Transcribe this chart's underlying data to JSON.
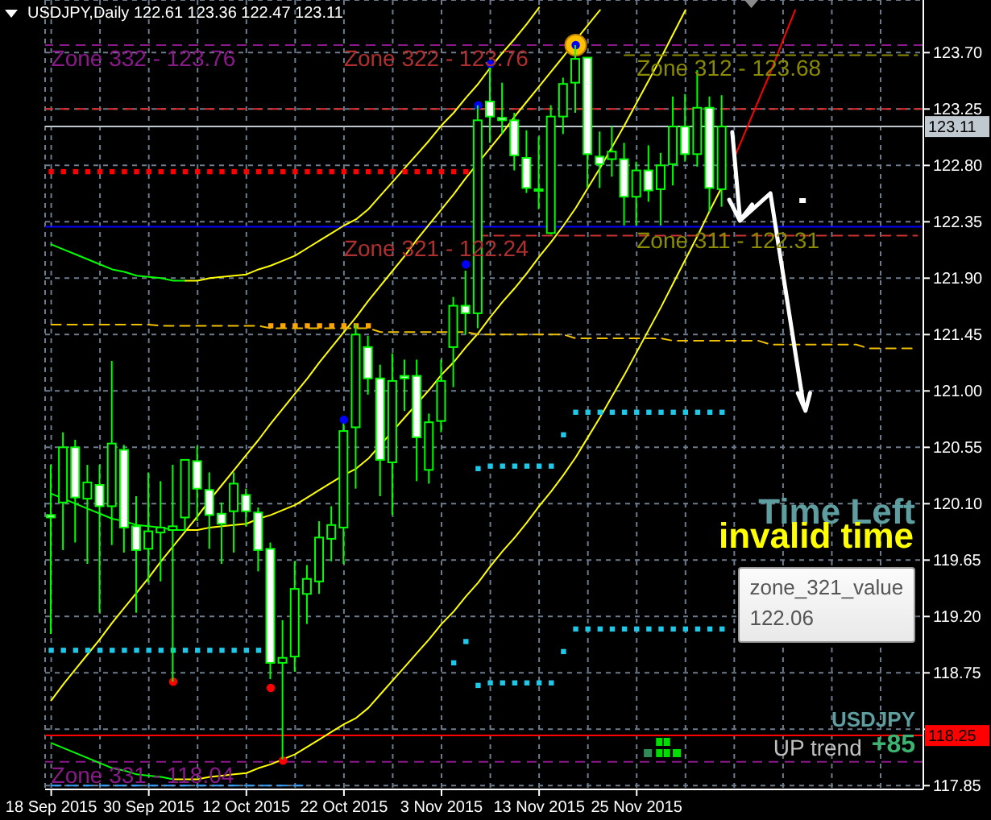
{
  "chart_data": {
    "type": "candlestick",
    "title": "USDJPY,Daily 122.61 123.36 122.47 123.11",
    "color": "#00ff00",
    "categories": [
      "18 Sep 2015",
      null,
      null,
      null,
      null,
      null,
      null,
      null,
      "30 Sep 2015",
      null,
      null,
      null,
      null,
      null,
      null,
      null,
      "12 Oct 2015",
      null,
      null,
      null,
      null,
      null,
      null,
      null,
      "22 Oct 2015",
      null,
      null,
      null,
      null,
      null,
      null,
      null,
      "3 Nov 2015",
      null,
      null,
      null,
      null,
      null,
      null,
      null,
      "13 Nov 2015",
      null,
      null,
      null,
      null,
      null,
      null,
      null,
      "25 Nov 2015",
      null,
      null,
      null,
      null,
      null,
      null,
      null,
      null,
      null,
      null,
      null,
      null,
      null,
      null,
      null,
      null,
      null,
      null,
      null,
      null,
      null,
      null,
      null
    ],
    "ohlc": [
      [
        120.01,
        120.41,
        119.06,
        119.99
      ],
      [
        120.11,
        120.67,
        119.73,
        120.55
      ],
      [
        120.55,
        120.61,
        119.79,
        120.15
      ],
      [
        120.14,
        120.41,
        119.62,
        120.27
      ],
      [
        120.25,
        120.41,
        119.23,
        120.08
      ],
      [
        120.08,
        121.24,
        119.77,
        120.58
      ],
      [
        120.53,
        120.57,
        119.71,
        119.91
      ],
      [
        119.92,
        120.16,
        119.23,
        119.73
      ],
      [
        119.74,
        120.35,
        119.47,
        119.88
      ],
      [
        119.87,
        120.28,
        119.48,
        119.91
      ],
      [
        119.89,
        120.41,
        118.68,
        119.92
      ],
      [
        119.99,
        120.45,
        119.88,
        120.45
      ],
      [
        120.44,
        120.56,
        119.96,
        120.22
      ],
      [
        120.21,
        120.35,
        119.74,
        120.01
      ],
      [
        120.02,
        120.11,
        119.62,
        119.94
      ],
      [
        120.04,
        120.35,
        119.71,
        120.26
      ],
      [
        120.17,
        120.22,
        119.92,
        120.04
      ],
      [
        120.03,
        120.07,
        119.56,
        119.73
      ],
      [
        119.74,
        119.79,
        118.7,
        118.83
      ],
      [
        118.83,
        119.17,
        118.06,
        118.87
      ],
      [
        118.88,
        119.64,
        118.76,
        119.42
      ],
      [
        119.38,
        119.61,
        119.14,
        119.5
      ],
      [
        119.48,
        119.96,
        119.38,
        119.83
      ],
      [
        119.82,
        120.08,
        119.64,
        119.93
      ],
      [
        119.91,
        120.74,
        119.62,
        120.68
      ],
      [
        120.71,
        121.53,
        120.22,
        121.45
      ],
      [
        121.35,
        121.44,
        120.97,
        121.1
      ],
      [
        121.1,
        121.21,
        120.16,
        120.45
      ],
      [
        120.43,
        121.3,
        120.01,
        121.08
      ],
      [
        121.12,
        121.25,
        120.84,
        121.1
      ],
      [
        121.12,
        121.25,
        120.28,
        120.63
      ],
      [
        120.37,
        120.82,
        120.26,
        120.75
      ],
      [
        120.76,
        121.25,
        120.67,
        121.08
      ],
      [
        121.35,
        121.75,
        121.03,
        121.68
      ],
      [
        121.68,
        121.96,
        121.45,
        121.62
      ],
      [
        121.62,
        123.28,
        121.5,
        123.16
      ],
      [
        123.31,
        123.58,
        122.98,
        123.19
      ],
      [
        123.18,
        123.46,
        123.05,
        123.16
      ],
      [
        123.16,
        123.22,
        122.76,
        122.88
      ],
      [
        122.86,
        123.08,
        122.58,
        122.62
      ],
      [
        122.61,
        123.03,
        122.45,
        122.6
      ],
      [
        122.26,
        123.28,
        122.25,
        123.19
      ],
      [
        123.19,
        123.5,
        123.05,
        123.45
      ],
      [
        123.46,
        123.76,
        123.22,
        123.65
      ],
      [
        123.66,
        123.66,
        122.62,
        122.89
      ],
      [
        122.87,
        123.07,
        122.62,
        122.81
      ],
      [
        122.85,
        123.11,
        122.71,
        122.91
      ],
      [
        122.85,
        122.98,
        122.32,
        122.55
      ],
      [
        122.55,
        122.83,
        122.32,
        122.76
      ],
      [
        122.76,
        122.96,
        122.51,
        122.6
      ],
      [
        122.61,
        122.9,
        122.32,
        122.8
      ],
      [
        122.81,
        123.35,
        122.64,
        123.11
      ],
      [
        123.11,
        123.37,
        122.83,
        122.89
      ],
      [
        122.89,
        123.56,
        122.79,
        123.26
      ],
      [
        123.26,
        123.35,
        122.43,
        122.62
      ],
      [
        122.61,
        123.36,
        122.47,
        123.11
      ],
      null,
      null,
      null,
      null,
      null,
      null,
      null,
      null,
      null,
      null,
      null,
      null,
      null,
      null,
      null,
      null
    ],
    "series": [
      {
        "type": "line",
        "color": "#00ff00",
        "marker": "none",
        "values": [
          122.17,
          122.13,
          122.09,
          122.05,
          122.01,
          121.97,
          121.95,
          121.92,
          121.91,
          121.9,
          121.88,
          121.88,
          null,
          null,
          null,
          null,
          null,
          null,
          null,
          null,
          null,
          null,
          null,
          null,
          null,
          null,
          null,
          null,
          null,
          null,
          null,
          null,
          null,
          null,
          null,
          null,
          null,
          null,
          null,
          null,
          null,
          null,
          null,
          null,
          null,
          null,
          null,
          null,
          null,
          null,
          null,
          null,
          null,
          null,
          null,
          null,
          null,
          null,
          null,
          null,
          null,
          null,
          null,
          null,
          null,
          null,
          null,
          null,
          null,
          null,
          null,
          null
        ]
      },
      {
        "type": "line",
        "color": "#ffff00",
        "marker": "none",
        "values": [
          null,
          null,
          null,
          null,
          null,
          null,
          null,
          null,
          null,
          null,
          null,
          121.88,
          121.88,
          121.9,
          121.91,
          121.92,
          121.93,
          121.97,
          122.0,
          122.04,
          122.08,
          122.14,
          122.2,
          122.26,
          122.32,
          122.37,
          122.45,
          122.56,
          122.67,
          122.78,
          122.89,
          123.0,
          123.12,
          123.22,
          123.34,
          123.45,
          123.58,
          123.7,
          123.81,
          123.93,
          124.06,
          null,
          null,
          null,
          null,
          null,
          null,
          null,
          null,
          null,
          null,
          null,
          null,
          null,
          null,
          null,
          null,
          null,
          null,
          null,
          null,
          null,
          null,
          null,
          null,
          null,
          null,
          null,
          null,
          null,
          null,
          null
        ]
      },
      {
        "type": "line",
        "color": "#00ff00",
        "marker": "none",
        "values": [
          120.18,
          120.14,
          120.1,
          120.06,
          120.02,
          119.98,
          119.96,
          119.93,
          119.92,
          119.91,
          119.89,
          119.89,
          null,
          null,
          null,
          null,
          null,
          null,
          null,
          null,
          null,
          null,
          null,
          null,
          null,
          null,
          null,
          null,
          null,
          null,
          null,
          null,
          null,
          null,
          null,
          null,
          null,
          null,
          null,
          null,
          null,
          null,
          null,
          null,
          null,
          null,
          null,
          null,
          null,
          null,
          null,
          null,
          null,
          null,
          null,
          null,
          null,
          null,
          null,
          null,
          null,
          null,
          null,
          null,
          null,
          null,
          null,
          null,
          null,
          null,
          null,
          null
        ]
      },
      {
        "type": "line",
        "color": "#ffff00",
        "marker": "none",
        "values": [
          null,
          null,
          null,
          null,
          null,
          null,
          null,
          null,
          null,
          null,
          null,
          119.89,
          119.89,
          119.91,
          119.92,
          119.93,
          119.94,
          119.98,
          120.01,
          120.05,
          120.09,
          120.15,
          120.21,
          120.27,
          120.33,
          120.38,
          120.46,
          120.57,
          120.68,
          120.79,
          120.9,
          121.01,
          121.13,
          121.23,
          121.35,
          121.46,
          121.59,
          121.71,
          121.82,
          121.94,
          122.07,
          122.19,
          122.32,
          122.46,
          122.62,
          122.78,
          122.95,
          123.12,
          123.3,
          123.48,
          123.66,
          123.85,
          124.04,
          null,
          null,
          null,
          null,
          null,
          null,
          null,
          null,
          null,
          null,
          null,
          null,
          null,
          null,
          null,
          null,
          null,
          null,
          null
        ]
      },
      {
        "type": "line",
        "color": "#00ff00",
        "marker": "none",
        "values": [
          118.19,
          118.15,
          118.11,
          118.07,
          118.03,
          117.99,
          117.97,
          117.94,
          117.93,
          117.92,
          117.9,
          null,
          null,
          null,
          null,
          null,
          null,
          null,
          null,
          null,
          null,
          null,
          null,
          null,
          null,
          null,
          null,
          null,
          null,
          null,
          null,
          null,
          null,
          null,
          null,
          null,
          null,
          null,
          null,
          null,
          null,
          null,
          null,
          null,
          null,
          null,
          null,
          null,
          null,
          null,
          null,
          null,
          null,
          null,
          null,
          null,
          null,
          null,
          null,
          null,
          null,
          null,
          null,
          null,
          null,
          null,
          null,
          null,
          null,
          null,
          null,
          null
        ]
      },
      {
        "type": "line",
        "color": "#ffff00",
        "marker": "none",
        "values": [
          null,
          null,
          null,
          null,
          null,
          null,
          null,
          null,
          null,
          null,
          117.9,
          117.9,
          117.9,
          117.92,
          117.93,
          117.94,
          117.95,
          117.99,
          118.02,
          118.06,
          118.1,
          118.16,
          118.22,
          118.28,
          118.34,
          118.39,
          118.47,
          118.58,
          118.69,
          118.8,
          118.91,
          119.02,
          119.14,
          119.24,
          119.36,
          119.47,
          119.6,
          119.72,
          119.83,
          119.95,
          120.08,
          120.2,
          120.33,
          120.47,
          120.63,
          120.79,
          120.96,
          121.13,
          121.31,
          121.49,
          121.67,
          121.86,
          122.05,
          122.24,
          122.44,
          122.63,
          null,
          null,
          null,
          null,
          null,
          null,
          null,
          null,
          null,
          null,
          null,
          null,
          null,
          null,
          null,
          null
        ]
      },
      {
        "type": "line",
        "color": "#ff0000",
        "marker": "none",
        "values": [
          null,
          null,
          null,
          null,
          null,
          null,
          null,
          null,
          null,
          null,
          null,
          null,
          null,
          null,
          null,
          null,
          null,
          null,
          null,
          null,
          null,
          null,
          null,
          null,
          null,
          null,
          null,
          null,
          null,
          null,
          null,
          null,
          null,
          null,
          null,
          null,
          null,
          null,
          null,
          null,
          null,
          null,
          null,
          null,
          null,
          null,
          null,
          null,
          null,
          null,
          null,
          null,
          null,
          null,
          null,
          null,
          122.86,
          123.09,
          123.32,
          123.55,
          123.8,
          124.04,
          null,
          null,
          null,
          null,
          null,
          null,
          null,
          null,
          null,
          null
        ]
      },
      {
        "type": "line",
        "color": "#ffff00",
        "marker": "none",
        "values": [
          118.53,
          118.66,
          118.78,
          118.9,
          119.02,
          119.15,
          119.27,
          119.39,
          119.51,
          119.64,
          119.76,
          119.88,
          120.0,
          120.13,
          120.25,
          120.37,
          120.49,
          120.61,
          120.74,
          120.86,
          120.98,
          121.1,
          121.23,
          121.35,
          121.47,
          121.59,
          121.72,
          121.84,
          121.96,
          122.08,
          122.21,
          122.33,
          122.45,
          122.57,
          122.7,
          122.82,
          122.94,
          123.06,
          123.19,
          123.31,
          123.43,
          123.55,
          123.67,
          123.8,
          123.92,
          124.04,
          null,
          null,
          null,
          null,
          null,
          null,
          null,
          null,
          null,
          null,
          null,
          null,
          null,
          null,
          null,
          null,
          null,
          null,
          null,
          null,
          null,
          null,
          null,
          null,
          null,
          null
        ]
      },
      {
        "type": "line",
        "color": "#f0c000",
        "marker": "none",
        "line_style": "dashed",
        "values": [
          121.53,
          121.53,
          121.53,
          121.53,
          121.53,
          121.53,
          121.53,
          121.53,
          121.53,
          121.52,
          121.52,
          121.52,
          121.52,
          121.52,
          121.52,
          121.52,
          121.52,
          121.52,
          121.5,
          121.5,
          121.5,
          121.5,
          121.5,
          121.5,
          121.5,
          121.5,
          121.5,
          121.47,
          121.47,
          121.47,
          121.47,
          121.47,
          121.47,
          121.47,
          121.47,
          121.45,
          121.45,
          121.45,
          121.45,
          121.45,
          121.45,
          121.45,
          121.45,
          121.42,
          121.42,
          121.42,
          121.42,
          121.42,
          121.42,
          121.42,
          121.42,
          121.4,
          121.4,
          121.4,
          121.4,
          121.4,
          121.4,
          121.4,
          121.4,
          121.37,
          121.37,
          121.37,
          121.37,
          121.37,
          121.37,
          121.37,
          121.37,
          121.34,
          121.34,
          121.34,
          121.34,
          121.34
        ]
      },
      {
        "type": "line",
        "color": "#c83232",
        "marker": "none",
        "line_style": "dashed",
        "values": [
          null,
          null,
          null,
          null,
          null,
          null,
          null,
          null,
          null,
          null,
          null,
          null,
          null,
          null,
          null,
          null,
          null,
          null,
          null,
          null,
          null,
          null,
          null,
          null,
          null,
          null,
          null,
          null,
          null,
          null,
          null,
          null,
          null,
          null,
          null,
          122.24,
          122.24,
          122.24,
          122.24,
          122.24,
          122.24,
          122.24,
          122.24,
          122.24,
          122.24,
          122.24,
          122.24,
          122.24,
          122.24,
          122.24,
          122.24,
          122.24,
          122.24,
          122.24,
          122.24,
          122.24,
          122.24,
          122.24,
          122.24,
          122.24,
          122.24,
          122.24,
          122.24,
          122.24,
          122.24,
          122.24,
          122.24,
          122.24,
          122.24,
          122.24,
          122.24,
          122.24
        ]
      },
      {
        "type": "line",
        "color": "#8b8b00",
        "marker": "none",
        "line_style": "dashed",
        "values": [
          null,
          null,
          null,
          null,
          null,
          null,
          null,
          null,
          null,
          null,
          null,
          null,
          null,
          null,
          null,
          null,
          null,
          null,
          null,
          null,
          null,
          null,
          null,
          null,
          null,
          null,
          null,
          null,
          null,
          null,
          null,
          null,
          null,
          null,
          null,
          null,
          null,
          null,
          null,
          null,
          null,
          null,
          null,
          null,
          null,
          null,
          null,
          123.68,
          123.68,
          123.68,
          123.68,
          123.68,
          123.68,
          123.68,
          123.68,
          123.68,
          123.68,
          123.68,
          123.68,
          123.68,
          123.68,
          123.68,
          123.68,
          123.68,
          123.68,
          123.68,
          123.68,
          123.68,
          123.68,
          123.68,
          123.68,
          123.68
        ]
      },
      {
        "type": "scatter",
        "color": "#ff0000",
        "marker": "square",
        "values": [
          122.75,
          122.75,
          122.75,
          122.75,
          122.75,
          122.75,
          122.75,
          122.75,
          122.75,
          122.75,
          122.75,
          122.75,
          122.75,
          122.75,
          122.75,
          122.75,
          122.75,
          122.75,
          122.75,
          122.75,
          122.75,
          122.75,
          122.75,
          122.75,
          122.75,
          122.75,
          122.75,
          122.75,
          122.75,
          122.75,
          122.75,
          122.75,
          122.75,
          122.75,
          122.75,
          null,
          null,
          null,
          null,
          null,
          null,
          null,
          null,
          null,
          null,
          null,
          null,
          null,
          null,
          null,
          null,
          null,
          null,
          null,
          null,
          null,
          null,
          null,
          null,
          null,
          null,
          null,
          null,
          null,
          null,
          null,
          null,
          null,
          null,
          null,
          null,
          null
        ]
      },
      {
        "type": "scatter",
        "color": "#ffa500",
        "marker": "square",
        "values": [
          null,
          null,
          null,
          null,
          null,
          null,
          null,
          null,
          null,
          null,
          null,
          null,
          null,
          null,
          null,
          null,
          null,
          null,
          121.52,
          121.52,
          121.52,
          121.52,
          121.52,
          121.52,
          121.52,
          121.52,
          121.52,
          null,
          null,
          null,
          null,
          null,
          null,
          null,
          null,
          null,
          null,
          null,
          null,
          null,
          null,
          null,
          null,
          null,
          null,
          null,
          null,
          null,
          null,
          null,
          null,
          null,
          null,
          null,
          null,
          null,
          null,
          null,
          null,
          null,
          null,
          null,
          null,
          null,
          null,
          null,
          null,
          null,
          null,
          null,
          null,
          null
        ]
      },
      {
        "type": "scatter",
        "color": "#1ec8e8",
        "marker": "square",
        "values": [
          118.93,
          118.93,
          118.93,
          118.93,
          118.93,
          118.93,
          118.93,
          118.93,
          118.93,
          118.93,
          118.93,
          118.93,
          118.93,
          118.93,
          118.93,
          118.93,
          118.93,
          118.93,
          null,
          null,
          null,
          null,
          null,
          null,
          null,
          null,
          null,
          null,
          null,
          null,
          null,
          null,
          null,
          118.83,
          119.0,
          118.65,
          118.67,
          118.67,
          118.67,
          118.67,
          118.67,
          118.67,
          118.92,
          119.1,
          119.1,
          119.1,
          119.1,
          119.1,
          119.1,
          119.1,
          119.1,
          119.1,
          119.1,
          119.1,
          119.1,
          119.1,
          null,
          null,
          null,
          null,
          null,
          null,
          null,
          null,
          null,
          null,
          null,
          null,
          null,
          null,
          null,
          null
        ]
      },
      {
        "type": "scatter",
        "color": "#1ec8e8",
        "marker": "square",
        "values": [
          null,
          null,
          null,
          null,
          null,
          null,
          null,
          null,
          null,
          null,
          null,
          null,
          null,
          null,
          null,
          null,
          null,
          null,
          null,
          null,
          null,
          null,
          null,
          null,
          null,
          null,
          null,
          null,
          null,
          null,
          null,
          null,
          null,
          null,
          null,
          120.38,
          120.4,
          120.4,
          120.4,
          120.4,
          120.4,
          120.4,
          120.65,
          120.83,
          120.83,
          120.83,
          120.83,
          120.83,
          120.83,
          120.83,
          120.83,
          120.83,
          120.83,
          120.83,
          120.83,
          120.83,
          null,
          null,
          null,
          null,
          null,
          null,
          null,
          null,
          null,
          null,
          null,
          null,
          null,
          null,
          null,
          null
        ]
      },
      {
        "type": "bubble",
        "color": "#ffc000",
        "values": [
          null,
          null,
          null,
          null,
          null,
          null,
          null,
          null,
          null,
          null,
          null,
          null,
          null,
          null,
          null,
          null,
          null,
          null,
          null,
          null,
          null,
          null,
          null,
          null,
          null,
          null,
          null,
          null,
          null,
          null,
          null,
          null,
          null,
          null,
          null,
          null,
          null,
          null,
          null,
          null,
          null,
          null,
          null,
          123.76,
          null,
          null,
          null,
          null,
          null,
          null,
          null,
          null,
          null,
          null,
          null,
          null,
          null,
          null,
          null,
          null,
          null,
          null,
          null,
          null,
          null,
          null,
          null,
          null,
          null,
          null,
          null,
          null
        ],
        "sizes": [
          null,
          null,
          null,
          null,
          null,
          null,
          null,
          null,
          null,
          null,
          null,
          null,
          null,
          null,
          null,
          null,
          null,
          null,
          null,
          null,
          null,
          null,
          null,
          null,
          null,
          null,
          null,
          null,
          null,
          null,
          null,
          null,
          null,
          null,
          null,
          null,
          null,
          null,
          null,
          null,
          null,
          null,
          null,
          1,
          null,
          null,
          null,
          null,
          null,
          null,
          null,
          null,
          null,
          null,
          null,
          null,
          null,
          null,
          null,
          null,
          null,
          null,
          null,
          null,
          null,
          null,
          null,
          null,
          null,
          null,
          null,
          null
        ]
      },
      {
        "type": "scatter",
        "color": "#0000ff",
        "marker": "circle",
        "values": [
          null,
          null,
          null,
          null,
          null,
          null,
          null,
          null,
          null,
          null,
          null,
          null,
          null,
          null,
          null,
          null,
          null,
          null,
          null,
          null,
          null,
          null,
          null,
          null,
          120.77,
          null,
          null,
          null,
          null,
          null,
          null,
          null,
          null,
          null,
          122.01,
          123.28,
          123.61,
          null,
          null,
          null,
          null,
          null,
          null,
          123.76,
          null,
          null,
          null,
          null,
          null,
          null,
          null,
          null,
          null,
          null,
          null,
          null,
          null,
          null,
          null,
          null,
          null,
          null,
          null,
          null,
          null,
          null,
          null,
          null,
          null,
          null,
          null,
          null
        ]
      },
      {
        "type": "scatter",
        "color": "#ff0000",
        "marker": "circle",
        "values": [
          null,
          null,
          null,
          null,
          null,
          null,
          null,
          null,
          null,
          null,
          118.68,
          null,
          null,
          null,
          null,
          null,
          null,
          null,
          118.63,
          118.05,
          null,
          null,
          null,
          null,
          null,
          null,
          null,
          null,
          null,
          null,
          null,
          null,
          null,
          null,
          null,
          null,
          null,
          null,
          null,
          null,
          null,
          null,
          null,
          null,
          null,
          null,
          null,
          null,
          null,
          null,
          null,
          null,
          null,
          null,
          null,
          null,
          null,
          null,
          null,
          null,
          null,
          null,
          null,
          null,
          null,
          null,
          null,
          null,
          null,
          null,
          null,
          null
        ]
      },
      {
        "type": "line",
        "color": "#33a0ff",
        "marker": "none",
        "line_style": "dashed",
        "values": [
          117.85,
          117.85,
          117.85,
          117.85,
          117.85,
          117.85,
          117.85,
          117.85,
          117.85,
          117.85,
          117.85,
          117.85,
          117.85,
          117.85,
          117.85,
          117.85,
          117.85,
          117.85,
          117.85,
          117.85,
          117.85,
          117.85,
          null,
          null,
          null,
          null,
          null,
          null,
          null,
          null,
          null,
          null,
          null,
          null,
          null,
          null,
          null,
          null,
          null,
          null,
          null,
          null,
          null,
          null,
          null,
          null,
          null,
          null,
          null,
          null,
          null,
          null,
          null,
          null,
          null,
          null,
          null,
          null,
          null,
          null,
          null,
          null,
          null,
          null,
          null,
          null,
          null,
          null,
          null,
          null,
          null,
          null
        ]
      }
    ],
    "ylim": [
      117.82,
      124.12
    ],
    "yticks": [
      117.85,
      {
        "value": 118.3,
        "label": null
      },
      118.75,
      {
        "value": 119.2,
        "label": "119.20"
      },
      119.65,
      {
        "value": 120.1,
        "label": "120.10"
      },
      120.55,
      {
        "value": 121.0,
        "label": "121.00"
      },
      121.45,
      {
        "value": 121.9,
        "label": "121.90"
      },
      122.35,
      {
        "value": 122.8,
        "label": "122.80"
      },
      123.25,
      {
        "value": 123.7,
        "label": "123.70"
      }
    ],
    "grid": true,
    "ref_lines": [
      {
        "axis": "y",
        "value": 123.76,
        "color": "#8b1a8b",
        "line_style": "dashed"
      },
      {
        "axis": "y",
        "value": 123.25,
        "color": "#e03030",
        "line_style": "dashed"
      },
      {
        "axis": "y",
        "value": 123.11,
        "label": "123.11",
        "color": "#c0c8d0"
      },
      {
        "axis": "y",
        "value": 122.31,
        "color": "#0000ff"
      },
      {
        "axis": "y",
        "value": 118.25,
        "label": "118.25",
        "color": "#ff0000"
      },
      {
        "axis": "y",
        "value": 118.04,
        "color": "#8b1a8b",
        "line_style": "dashed"
      }
    ],
    "annotations": [
      {
        "text": "Zone 332 - 123.76",
        "x": "18 Sep 2015",
        "y": 123.76
      },
      {
        "text": "Zone 322 - 123.76",
        "x": "22 Oct 2015",
        "y": 123.76
      },
      {
        "text": "Zone 312 - 123.68",
        "x": "25 Nov 2015",
        "y": 123.68
      },
      {
        "text": "Zone 321 - 122.24",
        "x": "22 Oct 2015",
        "y": 122.24
      },
      {
        "text": "Zone 311 - 122.31",
        "x": "25 Nov 2015",
        "y": 122.31
      },
      {
        "text": "Zone 331 - 118.04",
        "x": "18 Sep 2015",
        "y": 118.04
      },
      "zone_321_value\n122.06",
      "Time Left",
      "invalid time",
      "USDJPY",
      "UP trend",
      "+85"
    ]
  }
}
